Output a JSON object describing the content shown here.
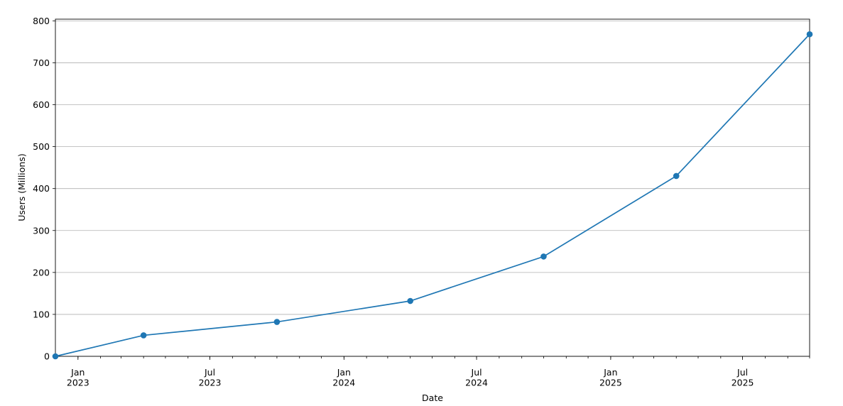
{
  "chart_data": {
    "type": "line",
    "x_label": "Date",
    "y_label": "Users (Millions)",
    "x": [
      "2022-12",
      "2023-04",
      "2023-10",
      "2024-04",
      "2024-10",
      "2025-04",
      "2025-10"
    ],
    "series": [
      {
        "color": "#1f77b4",
        "values": [
          0,
          50,
          82,
          132,
          238,
          430,
          768
        ]
      }
    ],
    "xlim": [
      "2022-12",
      "2025-10"
    ],
    "xticks": [
      {
        "value": "2023-01",
        "label": "Jan\n2023"
      },
      {
        "value": "2023-07",
        "label": "Jul\n2023"
      },
      {
        "value": "2024-01",
        "label": "Jan\n2024"
      },
      {
        "value": "2024-07",
        "label": "Jul\n2024"
      },
      {
        "value": "2025-01",
        "label": "Jan\n2025"
      },
      {
        "value": "2025-07",
        "label": "Jul\n2025"
      }
    ],
    "ylim": [
      0,
      804
    ],
    "yticks": [
      0,
      100,
      200,
      300,
      400,
      500,
      600,
      700,
      800
    ],
    "grid": "y"
  }
}
